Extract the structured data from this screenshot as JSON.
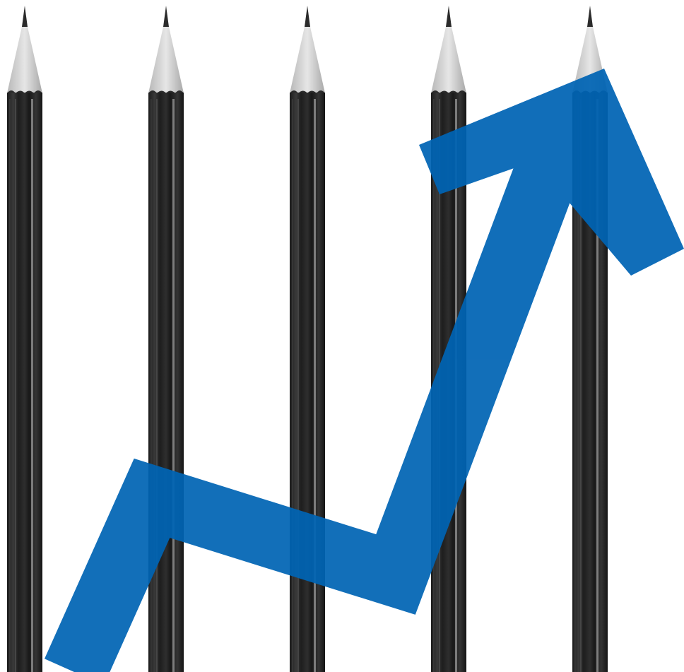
{
  "image": {
    "background_color": "#ffffff",
    "subject": "pencils",
    "pencil_count": 5,
    "pencil_body_color": "#2a2a2a",
    "pencil_highlight_color": "#8c8c8c",
    "pencil_wood_color": "#cfcfcf",
    "pencil_lead_color": "#333333",
    "arrow_color": "#0064b4",
    "arrow_direction": "up-right",
    "icons": [
      "pencil-icon",
      "trend-arrow-icon"
    ]
  }
}
